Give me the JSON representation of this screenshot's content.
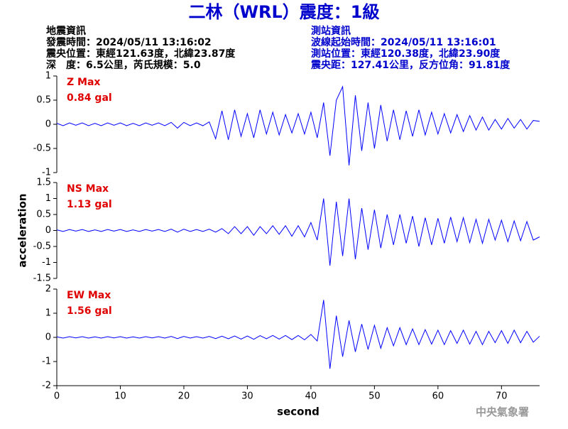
{
  "title": "二林（WRL）震度：1級",
  "quake_info": [
    "地震資訊",
    "發震時間：2024/05/11 13:16:02",
    "震央位置：東經121.63度，北緯23.87度",
    "深　度：6.5公里，芮氏規模：5.0"
  ],
  "station_info": [
    "測站資訊",
    "波線起始時間：2024/05/11 13:16:01",
    "測站位置：東經120.38度，北緯23.90度",
    "震央距：127.41公里，反方位角：91.81度"
  ],
  "footer": "中央氣象署",
  "chart_data": [
    {
      "type": "line",
      "name": "Z Max",
      "max_label": "0.84 gal",
      "color": "#0000ff",
      "xlim": [
        0,
        76
      ],
      "ylim": [
        -1,
        1
      ],
      "yticks": [
        1,
        0.5,
        0,
        -0.5,
        -1
      ],
      "x": [
        0,
        1,
        2,
        3,
        4,
        5,
        6,
        7,
        8,
        9,
        10,
        11,
        12,
        13,
        14,
        15,
        16,
        17,
        18,
        19,
        20,
        21,
        22,
        23,
        24,
        25,
        26,
        27,
        28,
        29,
        30,
        31,
        32,
        33,
        34,
        35,
        36,
        37,
        38,
        39,
        40,
        41,
        42,
        43,
        44,
        45,
        46,
        47,
        48,
        49,
        50,
        51,
        52,
        53,
        54,
        55,
        56,
        57,
        58,
        59,
        60,
        61,
        62,
        63,
        64,
        65,
        66,
        67,
        68,
        69,
        70,
        71,
        72,
        73,
        74,
        75,
        76
      ],
      "values": [
        0.02,
        -0.03,
        0.03,
        -0.02,
        0.03,
        -0.03,
        0.02,
        -0.03,
        0.03,
        -0.02,
        0.03,
        -0.03,
        0.02,
        -0.03,
        0.03,
        -0.02,
        0.03,
        -0.03,
        0.04,
        -0.08,
        0.04,
        -0.03,
        0.03,
        -0.03,
        0.05,
        -0.3,
        0.28,
        -0.32,
        0.3,
        -0.25,
        0.22,
        -0.28,
        0.3,
        -0.2,
        0.25,
        -0.22,
        0.2,
        -0.18,
        0.22,
        -0.2,
        0.25,
        -0.28,
        0.45,
        -0.65,
        0.5,
        0.78,
        -0.85,
        0.6,
        -0.55,
        0.45,
        -0.5,
        0.4,
        -0.35,
        0.3,
        -0.32,
        0.28,
        -0.25,
        0.3,
        -0.22,
        0.25,
        -0.2,
        0.22,
        -0.18,
        0.2,
        -0.15,
        0.18,
        -0.12,
        0.15,
        -0.12,
        0.1,
        -0.1,
        0.12,
        -0.08,
        0.1,
        -0.1,
        0.08,
        0.06
      ]
    },
    {
      "type": "line",
      "name": "NS Max",
      "max_label": "1.13 gal",
      "color": "#0000ff",
      "ylabel": "acceleration",
      "xlim": [
        0,
        76
      ],
      "ylim": [
        -1.5,
        1.5
      ],
      "yticks": [
        1.5,
        1,
        0.5,
        0,
        -0.5,
        -1,
        -1.5
      ],
      "x": [
        0,
        1,
        2,
        3,
        4,
        5,
        6,
        7,
        8,
        9,
        10,
        11,
        12,
        13,
        14,
        15,
        16,
        17,
        18,
        19,
        20,
        21,
        22,
        23,
        24,
        25,
        26,
        27,
        28,
        29,
        30,
        31,
        32,
        33,
        34,
        35,
        36,
        37,
        38,
        39,
        40,
        41,
        42,
        43,
        44,
        45,
        46,
        47,
        48,
        49,
        50,
        51,
        52,
        53,
        54,
        55,
        56,
        57,
        58,
        59,
        60,
        61,
        62,
        63,
        64,
        65,
        66,
        67,
        68,
        69,
        70,
        71,
        72,
        73,
        74,
        75,
        76
      ],
      "values": [
        0.02,
        -0.03,
        0.03,
        -0.02,
        0.03,
        -0.03,
        0.02,
        -0.03,
        0.03,
        -0.02,
        0.03,
        -0.03,
        0.02,
        -0.03,
        0.03,
        -0.02,
        0.03,
        -0.03,
        0.04,
        -0.05,
        0.04,
        -0.03,
        0.03,
        -0.03,
        0.04,
        -0.05,
        0.06,
        -0.1,
        0.12,
        -0.1,
        0.12,
        -0.15,
        0.12,
        -0.1,
        0.15,
        -0.12,
        0.15,
        -0.18,
        0.15,
        -0.2,
        0.25,
        -0.3,
        1.0,
        -1.1,
        0.9,
        -0.8,
        1.0,
        -0.9,
        0.7,
        -0.6,
        0.65,
        -0.55,
        0.5,
        -0.45,
        0.5,
        -0.4,
        0.45,
        -0.5,
        0.4,
        -0.45,
        0.38,
        -0.4,
        0.42,
        -0.35,
        0.4,
        -0.38,
        0.35,
        -0.4,
        0.35,
        -0.3,
        0.32,
        -0.35,
        0.3,
        -0.32,
        0.28,
        -0.3,
        -0.2
      ]
    },
    {
      "type": "line",
      "name": "EW Max",
      "max_label": "1.56 gal",
      "color": "#0000ff",
      "xlabel": "second",
      "xlim": [
        0,
        76
      ],
      "xticks": [
        0,
        10,
        20,
        30,
        40,
        50,
        60,
        70
      ],
      "ylim": [
        -2,
        2
      ],
      "yticks": [
        2,
        1,
        0,
        -1,
        -2
      ],
      "x": [
        0,
        1,
        2,
        3,
        4,
        5,
        6,
        7,
        8,
        9,
        10,
        11,
        12,
        13,
        14,
        15,
        16,
        17,
        18,
        19,
        20,
        21,
        22,
        23,
        24,
        25,
        26,
        27,
        28,
        29,
        30,
        31,
        32,
        33,
        34,
        35,
        36,
        37,
        38,
        39,
        40,
        41,
        42,
        43,
        44,
        45,
        46,
        47,
        48,
        49,
        50,
        51,
        52,
        53,
        54,
        55,
        56,
        57,
        58,
        59,
        60,
        61,
        62,
        63,
        64,
        65,
        66,
        67,
        68,
        69,
        70,
        71,
        72,
        73,
        74,
        75,
        76
      ],
      "values": [
        0.02,
        -0.03,
        0.03,
        -0.02,
        0.03,
        -0.03,
        0.02,
        -0.03,
        0.03,
        -0.02,
        0.03,
        -0.03,
        0.02,
        -0.03,
        0.03,
        -0.02,
        0.03,
        -0.03,
        0.04,
        -0.05,
        0.04,
        -0.03,
        0.03,
        -0.03,
        0.04,
        -0.05,
        0.05,
        -0.06,
        0.06,
        -0.07,
        0.06,
        -0.08,
        0.07,
        -0.06,
        0.08,
        -0.07,
        0.08,
        -0.09,
        0.08,
        -0.1,
        0.12,
        -0.15,
        1.55,
        -1.3,
        0.9,
        -0.8,
        0.7,
        -0.6,
        0.55,
        -0.5,
        0.5,
        -0.45,
        0.4,
        -0.35,
        0.4,
        -0.3,
        0.35,
        -0.3,
        0.32,
        -0.28,
        0.3,
        -0.3,
        0.28,
        -0.25,
        0.3,
        -0.28,
        0.25,
        -0.3,
        0.25,
        -0.22,
        0.28,
        -0.25,
        0.3,
        -0.22,
        0.25,
        -0.2,
        0.05
      ]
    }
  ]
}
